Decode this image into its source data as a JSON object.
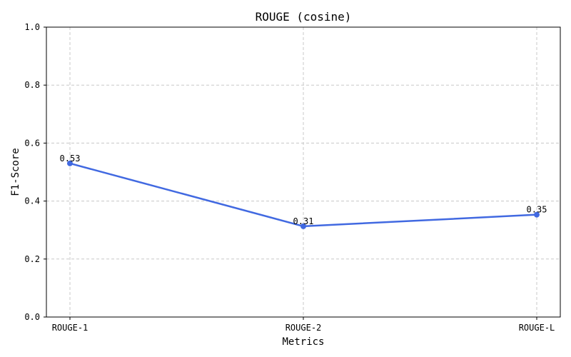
{
  "chart_data": {
    "type": "line",
    "title": "ROUGE (cosine)",
    "xlabel": "Metrics",
    "ylabel": "F1-Score",
    "categories": [
      "ROUGE-1",
      "ROUGE-2",
      "ROUGE-L"
    ],
    "series": [
      {
        "values": [
          0.53,
          0.313,
          0.353
        ],
        "labels": [
          "0.53",
          "0.31",
          "0.35"
        ],
        "color": "#4169e1"
      }
    ],
    "ylim": [
      0,
      1.0
    ],
    "yticks": [
      0.0,
      0.2,
      0.4,
      0.6,
      0.8,
      1.0
    ],
    "ytick_labels": [
      "0.0",
      "0.2",
      "0.4",
      "0.6",
      "0.8",
      "1.0"
    ],
    "grid": true,
    "legend": "none"
  }
}
